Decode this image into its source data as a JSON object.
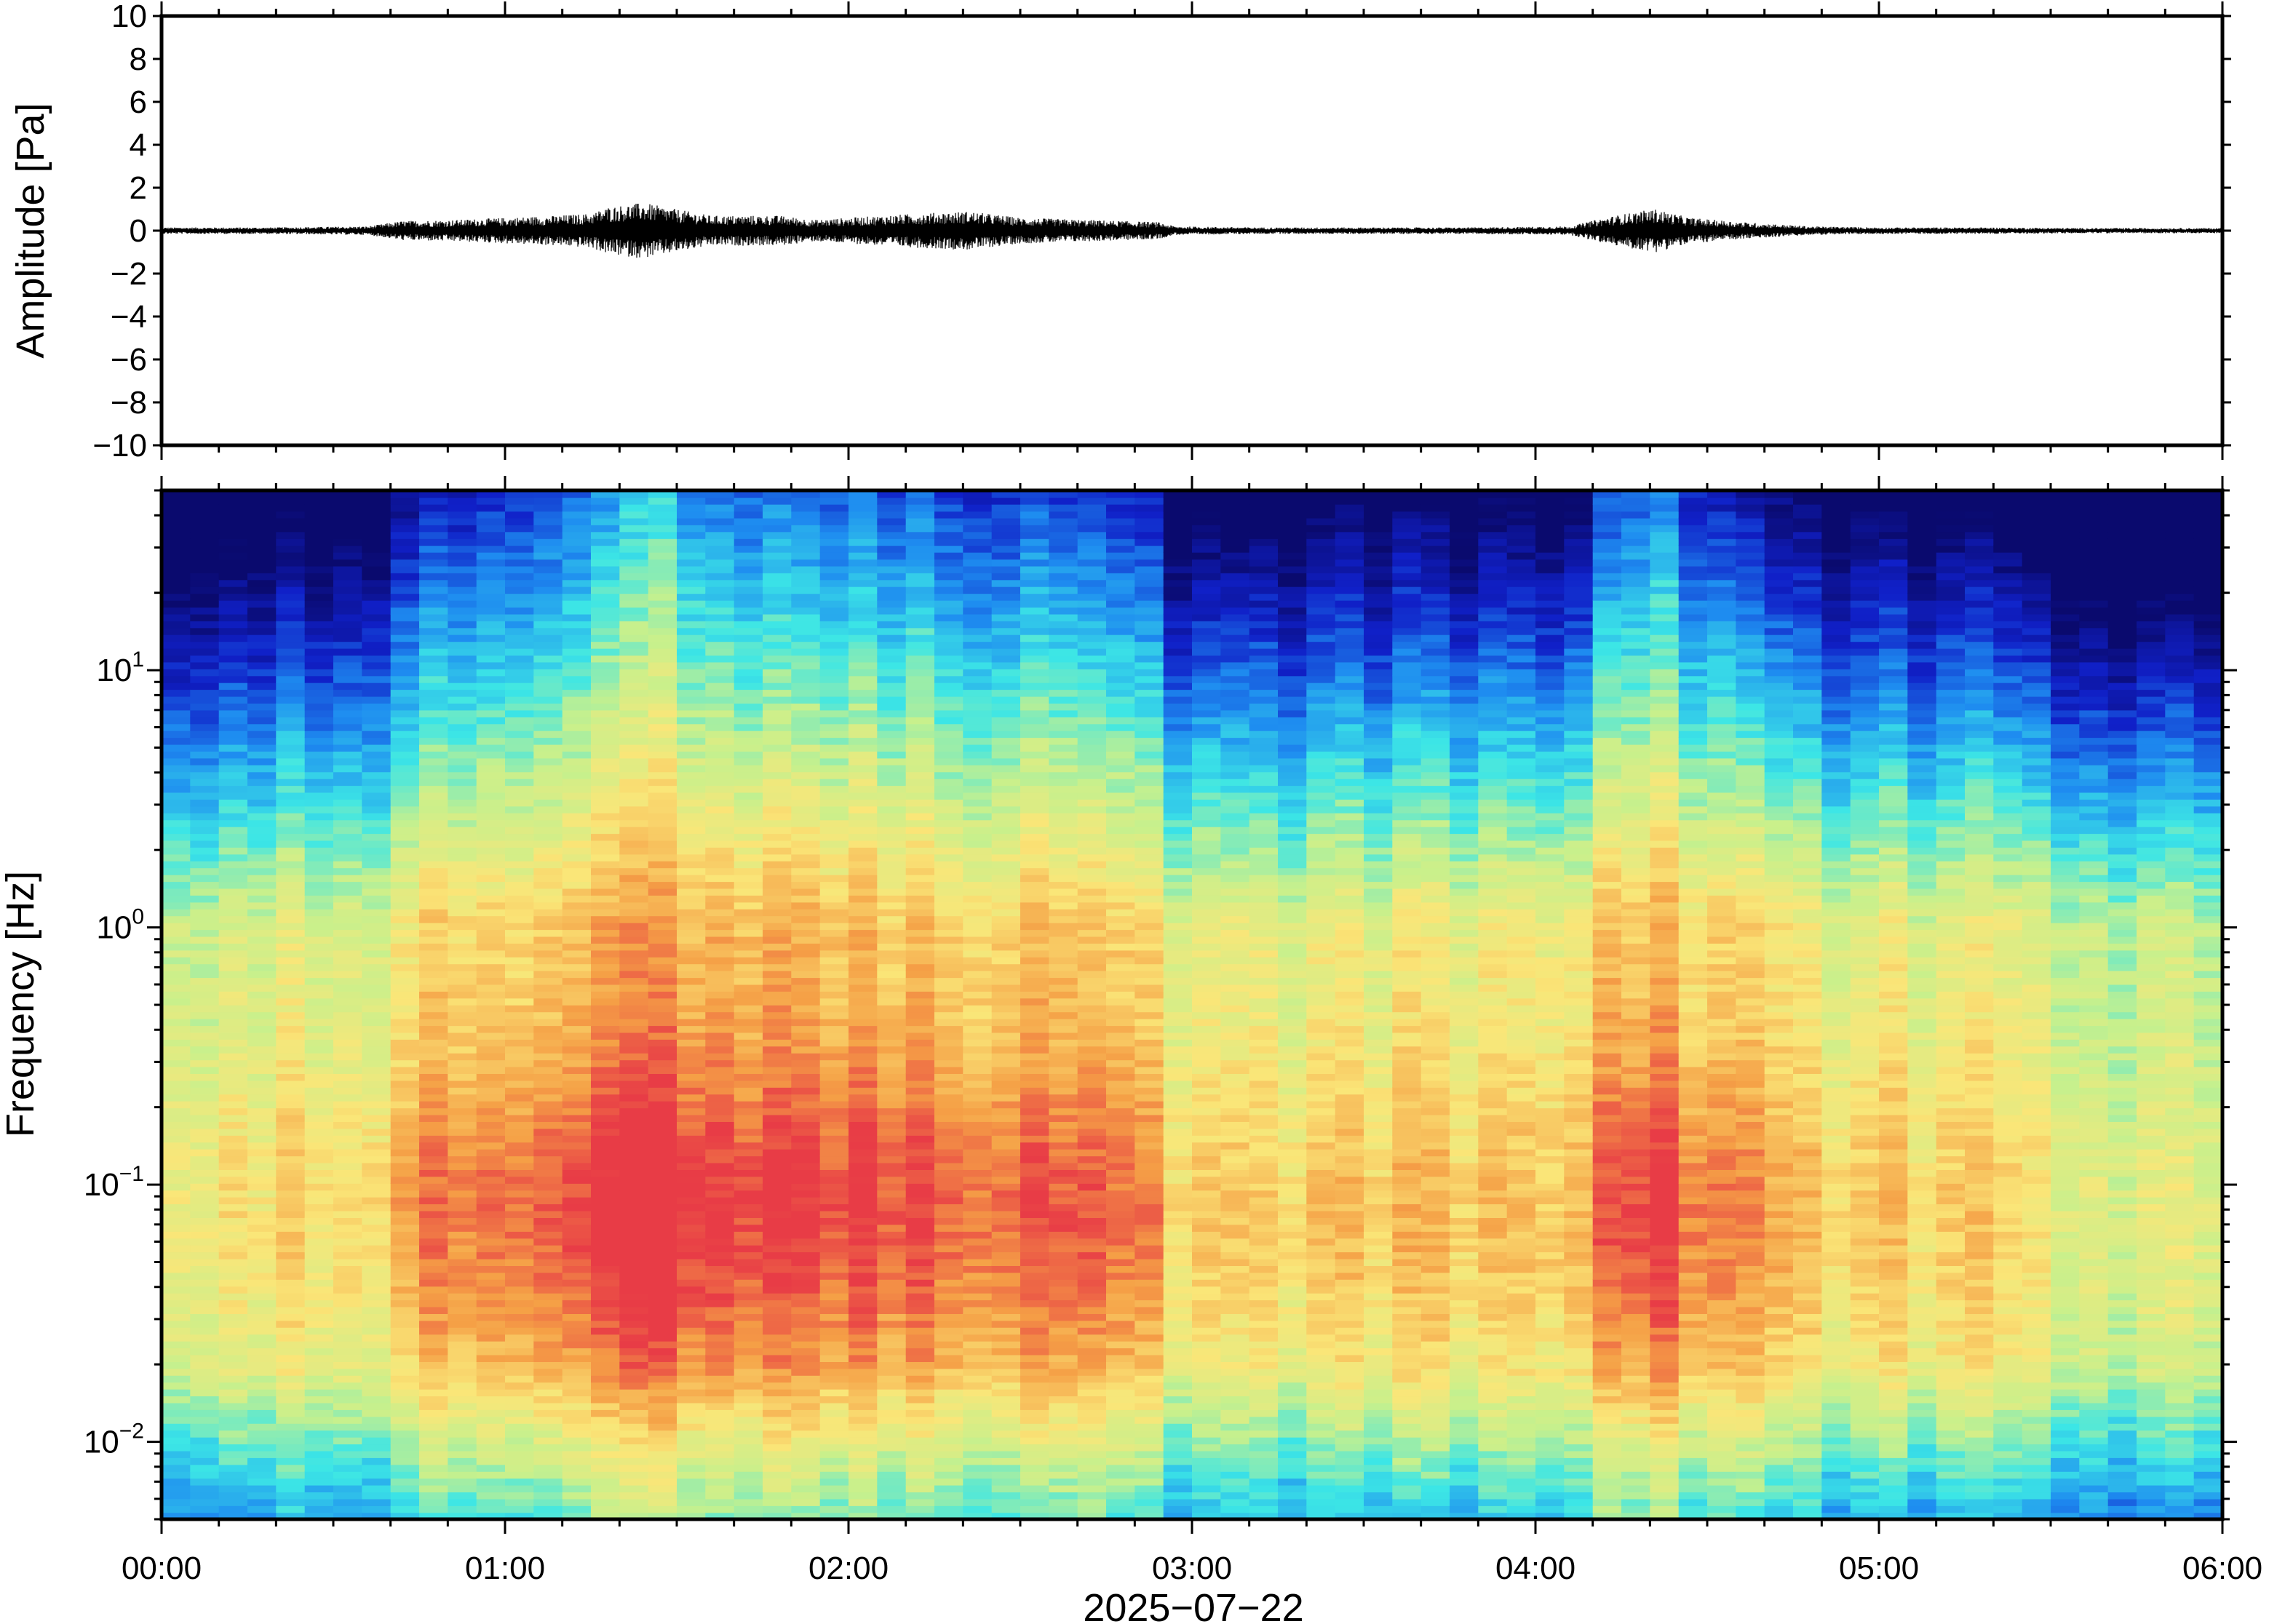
{
  "chart_data": [
    {
      "type": "line",
      "panel": "waveform",
      "ylabel": "Amplitude [Pa]",
      "xlabel": "",
      "ylim": [
        -10,
        10
      ],
      "yticks": [
        -10,
        -8,
        -6,
        -4,
        -2,
        0,
        2,
        4,
        6,
        8,
        10
      ],
      "ytick_labels": [
        "−10",
        "−8",
        "−6",
        "−4",
        "−2",
        "0",
        "2",
        "4",
        "6",
        "8",
        "10"
      ],
      "xlim_hours": [
        0,
        6
      ],
      "line_color": "#000000",
      "envelope": {
        "description_hours": "approximate peak absolute amplitude (Pa) over time",
        "t": [
          0.0,
          0.3,
          0.6,
          0.7,
          0.85,
          1.0,
          1.15,
          1.25,
          1.3,
          1.4,
          1.5,
          1.6,
          1.8,
          1.9,
          2.0,
          2.2,
          2.35,
          2.5,
          2.7,
          2.9,
          2.95,
          3.2,
          3.5,
          3.8,
          4.1,
          4.2,
          4.3,
          4.35,
          4.45,
          4.6,
          4.8,
          5.0,
          5.3,
          5.6,
          6.0
        ],
        "amp": [
          0.15,
          0.15,
          0.2,
          0.45,
          0.5,
          0.6,
          0.7,
          0.8,
          1.1,
          1.3,
          1.0,
          0.7,
          0.7,
          0.5,
          0.6,
          0.8,
          0.9,
          0.6,
          0.5,
          0.4,
          0.2,
          0.15,
          0.15,
          0.15,
          0.2,
          0.6,
          0.9,
          1.0,
          0.6,
          0.4,
          0.2,
          0.15,
          0.15,
          0.12,
          0.12
        ]
      }
    },
    {
      "type": "heatmap",
      "panel": "spectrogram",
      "ylabel": "Frequency [Hz]",
      "xlabel": "2025−07−22",
      "yscale": "log",
      "ylim": [
        0.005,
        50
      ],
      "yticks": [
        {
          "value": 0.01,
          "base": "10",
          "exp": "−2"
        },
        {
          "value": 0.1,
          "base": "10",
          "exp": "−1"
        },
        {
          "value": 1,
          "base": "10",
          "exp": "0"
        },
        {
          "value": 10,
          "base": "10",
          "exp": "1"
        }
      ],
      "xticks": [
        "00:00",
        "01:00",
        "02:00",
        "03:00",
        "04:00",
        "05:00",
        "06:00"
      ],
      "xlim_hours": [
        0,
        6
      ],
      "colormap": [
        "#0a0a6e",
        "#1020c8",
        "#1e8cf0",
        "#3ce6e6",
        "#c8f08c",
        "#fae678",
        "#f5a046",
        "#e83c46"
      ],
      "column_width_minutes": 5,
      "activity_profile": {
        "description_hours": "relative broadband energy per time (0=quiet, 1=strong)",
        "t": [
          0.0,
          0.3,
          0.6,
          0.7,
          1.0,
          1.3,
          1.45,
          1.6,
          1.9,
          2.1,
          2.3,
          2.6,
          2.9,
          2.95,
          3.4,
          3.8,
          4.1,
          4.25,
          4.35,
          4.5,
          4.7,
          5.0,
          5.4,
          5.5,
          6.0
        ],
        "level": [
          0.35,
          0.4,
          0.45,
          0.6,
          0.7,
          0.85,
          1.0,
          0.8,
          0.75,
          0.8,
          0.75,
          0.7,
          0.65,
          0.4,
          0.45,
          0.45,
          0.4,
          0.8,
          0.85,
          0.65,
          0.5,
          0.45,
          0.4,
          0.25,
          0.25
        ]
      }
    }
  ]
}
